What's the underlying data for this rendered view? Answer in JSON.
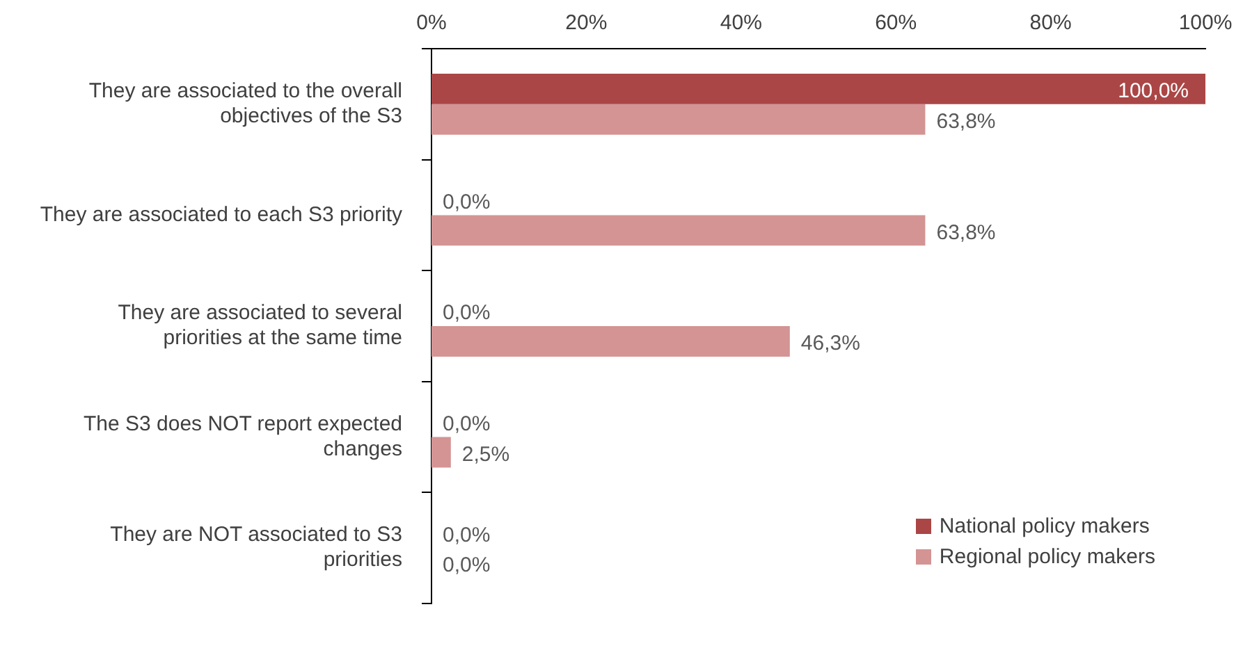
{
  "chart_data": {
    "type": "bar",
    "orientation": "horizontal",
    "categories": [
      "They are associated to the overall objectives of the S3",
      "They are associated to each S3 priority",
      "They are associated to several priorities at the same time",
      "The S3 does NOT report expected changes",
      "They are NOT associated to S3 priorities"
    ],
    "series": [
      {
        "name": "National policy makers",
        "color": "#ab4646",
        "values": [
          100,
          0,
          0,
          0,
          0
        ],
        "value_labels": [
          "100,0%",
          "0,0%",
          "0,0%",
          "0,0%",
          "0,0%"
        ]
      },
      {
        "name": "Regional policy makers",
        "color": "#d49494",
        "values": [
          63.8,
          63.8,
          46.3,
          2.5,
          0
        ],
        "value_labels": [
          "63,8%",
          "63,8%",
          "46,3%",
          "2,5%",
          "0,0%"
        ]
      }
    ],
    "xlim": [
      0,
      100
    ],
    "xticks": [
      {
        "value": 0,
        "label": "0%"
      },
      {
        "value": 20,
        "label": "20%"
      },
      {
        "value": 40,
        "label": "40%"
      },
      {
        "value": 60,
        "label": "60%"
      },
      {
        "value": 80,
        "label": "80%"
      },
      {
        "value": 100,
        "label": "100%"
      }
    ],
    "legend": "bottom right"
  }
}
